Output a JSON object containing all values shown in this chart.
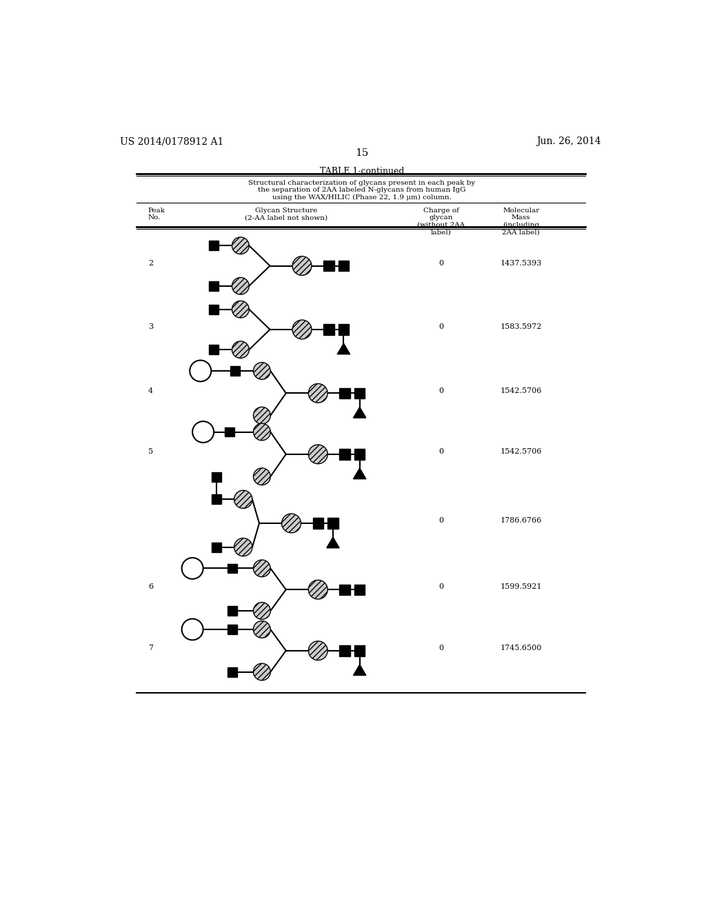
{
  "title_left": "US 2014/0178912 A1",
  "title_right": "Jun. 26, 2014",
  "page_number": "15",
  "table_title": "TABLE 1-continued",
  "table_subtitle": "Structural characterization of glycans present in each peak by\nthe separation of 2AA labeled N-glycans from human IgG\nusing the WAX/HILIC (Phase 22, 1.9 μm) column.",
  "rows": [
    {
      "peak": "2",
      "charge": "0",
      "mass": "1437.5393"
    },
    {
      "peak": "3",
      "charge": "0",
      "mass": "1583.5972"
    },
    {
      "peak": "4",
      "charge": "0",
      "mass": "1542.5706"
    },
    {
      "peak": "5",
      "charge": "0",
      "mass": "1542.5706"
    },
    {
      "peak": "",
      "charge": "0",
      "mass": "1786.6766"
    },
    {
      "peak": "6",
      "charge": "0",
      "mass": "1599.5921"
    },
    {
      "peak": "7",
      "charge": "0",
      "mass": "1745.6500"
    }
  ],
  "bg_color": "#ffffff",
  "text_color": "#000000"
}
